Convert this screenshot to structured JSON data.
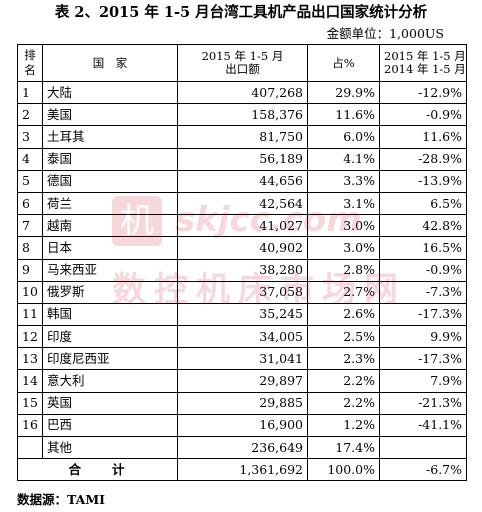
{
  "title": "表 2、2015 年 1-5 月台湾工具机产品出口国家统计分析",
  "unit": "金额单位：1,000US",
  "headers": {
    "rank": "排名",
    "country": "国　家",
    "value_line1": "2015 年 1-5 月",
    "value_line2": "出口额",
    "share": "占%",
    "growth_line1": "2015 年 1-5 月/",
    "growth_line2": "2014 年 1-5 月"
  },
  "rows": [
    {
      "rank": "1",
      "country": "大陆",
      "value": "407,268",
      "share": "29.9%",
      "growth": "-12.9%"
    },
    {
      "rank": "2",
      "country": "美国",
      "value": "158,376",
      "share": "11.6%",
      "growth": "-0.9%"
    },
    {
      "rank": "3",
      "country": "土耳其",
      "value": "81,750",
      "share": "6.0%",
      "growth": "11.6%"
    },
    {
      "rank": "4",
      "country": "泰国",
      "value": "56,189",
      "share": "4.1%",
      "growth": "-28.9%"
    },
    {
      "rank": "5",
      "country": "德国",
      "value": "44,656",
      "share": "3.3%",
      "growth": "-13.9%"
    },
    {
      "rank": "6",
      "country": "荷兰",
      "value": "42,564",
      "share": "3.1%",
      "growth": "6.5%"
    },
    {
      "rank": "7",
      "country": "越南",
      "value": "41,027",
      "share": "3.0%",
      "growth": "42.8%"
    },
    {
      "rank": "8",
      "country": "日本",
      "value": "40,902",
      "share": "3.0%",
      "growth": "16.5%"
    },
    {
      "rank": "9",
      "country": "马来西亚",
      "value": "38,280",
      "share": "2.8%",
      "growth": "-0.9%"
    },
    {
      "rank": "10",
      "country": "俄罗斯",
      "value": "37,058",
      "share": "2.7%",
      "growth": "-7.3%"
    },
    {
      "rank": "11",
      "country": "韩国",
      "value": "35,245",
      "share": "2.6%",
      "growth": "-17.3%"
    },
    {
      "rank": "12",
      "country": "印度",
      "value": "34,005",
      "share": "2.5%",
      "growth": "9.9%"
    },
    {
      "rank": "13",
      "country": "印度尼西亚",
      "value": "31,041",
      "share": "2.3%",
      "growth": "-17.3%"
    },
    {
      "rank": "14",
      "country": "意大利",
      "value": "29,897",
      "share": "2.2%",
      "growth": "7.9%"
    },
    {
      "rank": "15",
      "country": "英国",
      "value": "29,885",
      "share": "2.2%",
      "growth": "-21.3%"
    },
    {
      "rank": "16",
      "country": "巴西",
      "value": "16,900",
      "share": "1.2%",
      "growth": "-41.1%"
    },
    {
      "rank": "",
      "country": "其他",
      "value": "236,649",
      "share": "17.4%",
      "growth": ""
    }
  ],
  "total": {
    "label": "合　　计",
    "value": "1,361,692",
    "share": "100.0%",
    "growth": "-6.7%"
  },
  "source": "数据源：TAMI",
  "watermark": {
    "logo_char": "机",
    "url": "skjcc.com",
    "cn": "数控机床市场网"
  },
  "colors": {
    "watermark": "#c8102e"
  }
}
